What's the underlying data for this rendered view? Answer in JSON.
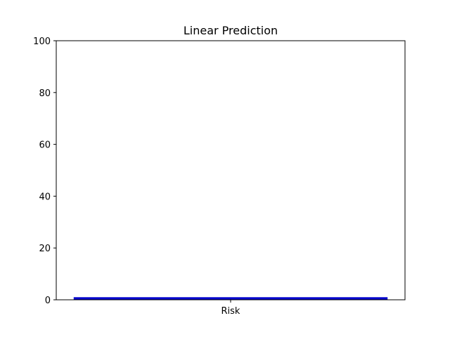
{
  "chart_data": {
    "type": "bar",
    "title": "Linear Prediction",
    "xlabel": "",
    "ylabel": "",
    "categories": [
      "Risk"
    ],
    "values": [
      1
    ],
    "ylim": [
      0,
      100
    ],
    "yticks": [
      0,
      20,
      40,
      60,
      80,
      100
    ],
    "grid": false,
    "bar_color": "#0000cc"
  }
}
